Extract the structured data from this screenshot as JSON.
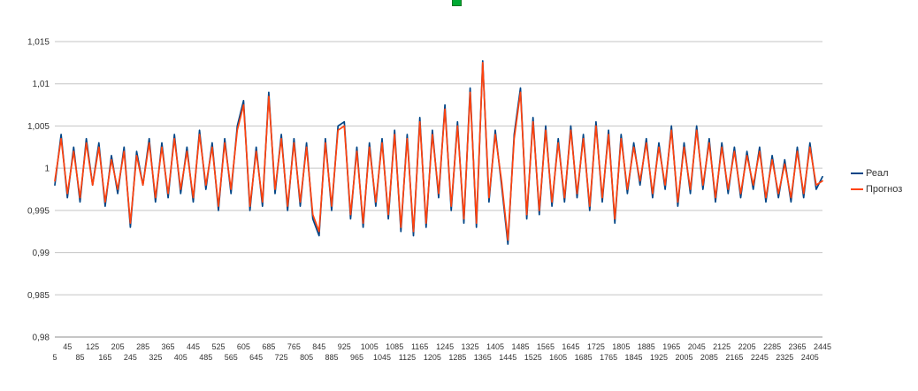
{
  "chart_data": {
    "type": "line",
    "title": "",
    "xlabel": "",
    "ylabel": "",
    "grid": true,
    "legend_position": "right",
    "ylim": [
      0.98,
      1.015
    ],
    "y_ticks": [
      {
        "value": 0.98,
        "label": "0,98"
      },
      {
        "value": 0.985,
        "label": "0,985"
      },
      {
        "value": 0.99,
        "label": "0,99"
      },
      {
        "value": 0.995,
        "label": "0,995"
      },
      {
        "value": 1,
        "label": "1"
      },
      {
        "value": 1.005,
        "label": "1,005"
      },
      {
        "value": 1.01,
        "label": "1,01"
      },
      {
        "value": 1.015,
        "label": "1,015"
      }
    ],
    "x_tick_labels_row1": [
      "45",
      "125",
      "205",
      "285",
      "365",
      "445",
      "525",
      "605",
      "685",
      "765",
      "845",
      "925",
      "1005",
      "1085",
      "1165",
      "1245",
      "1325",
      "1405",
      "1485",
      "1565",
      "1645",
      "1725",
      "1805",
      "1885",
      "1965",
      "2045",
      "2125",
      "2205",
      "2285",
      "2365",
      "2445"
    ],
    "x_tick_labels_row2": [
      "5",
      "85",
      "165",
      "245",
      "325",
      "405",
      "485",
      "565",
      "645",
      "725",
      "805",
      "885",
      "965",
      "1045",
      "1125",
      "1205",
      "1285",
      "1365",
      "1445",
      "1525",
      "1605",
      "1685",
      "1765",
      "1845",
      "1925",
      "2005",
      "2085",
      "2165",
      "2245",
      "2325",
      "2405"
    ],
    "x": [
      5,
      25,
      45,
      65,
      85,
      105,
      125,
      145,
      165,
      185,
      205,
      225,
      245,
      265,
      285,
      305,
      325,
      345,
      365,
      385,
      405,
      425,
      445,
      465,
      485,
      505,
      525,
      545,
      565,
      585,
      605,
      625,
      645,
      665,
      685,
      705,
      725,
      745,
      765,
      785,
      805,
      825,
      845,
      865,
      885,
      905,
      925,
      945,
      965,
      985,
      1005,
      1025,
      1045,
      1065,
      1085,
      1105,
      1125,
      1145,
      1165,
      1185,
      1205,
      1225,
      1245,
      1265,
      1285,
      1305,
      1325,
      1345,
      1365,
      1385,
      1405,
      1425,
      1445,
      1465,
      1485,
      1505,
      1525,
      1545,
      1565,
      1585,
      1605,
      1625,
      1645,
      1665,
      1685,
      1705,
      1725,
      1745,
      1765,
      1785,
      1805,
      1825,
      1845,
      1865,
      1885,
      1905,
      1925,
      1945,
      1965,
      1985,
      2005,
      2025,
      2045,
      2065,
      2085,
      2105,
      2125,
      2145,
      2165,
      2185,
      2205,
      2225,
      2245,
      2265,
      2285,
      2305,
      2325,
      2345,
      2365,
      2385,
      2405,
      2425,
      2445
    ],
    "series": [
      {
        "name": "Реал",
        "color": "#004586",
        "values": [
          0.998,
          1.004,
          0.9965,
          1.0025,
          0.996,
          1.0035,
          0.998,
          1.003,
          0.9955,
          1.0015,
          0.997,
          1.0025,
          0.993,
          1.002,
          0.998,
          1.0035,
          0.996,
          1.003,
          0.9965,
          1.004,
          0.997,
          1.0025,
          0.996,
          1.0045,
          0.9975,
          1.003,
          0.995,
          1.0035,
          0.997,
          1.005,
          1.008,
          0.995,
          1.0025,
          0.9955,
          1.009,
          0.997,
          1.004,
          0.995,
          1.0035,
          0.9955,
          1.003,
          0.994,
          0.992,
          1.0035,
          0.995,
          1.005,
          1.0055,
          0.994,
          1.0025,
          0.993,
          1.003,
          0.9955,
          1.0035,
          0.994,
          1.0045,
          0.9925,
          1.004,
          0.992,
          1.006,
          0.993,
          1.0045,
          0.9965,
          1.0075,
          0.995,
          1.0055,
          0.9935,
          1.0095,
          0.993,
          1.0127,
          0.996,
          1.0045,
          0.998,
          0.991,
          1.004,
          1.0095,
          0.994,
          1.006,
          0.9945,
          1.005,
          0.9955,
          1.0035,
          0.996,
          1.005,
          0.9965,
          1.004,
          0.995,
          1.0055,
          0.996,
          1.0045,
          0.9935,
          1.004,
          0.997,
          1.003,
          0.998,
          1.0035,
          0.9965,
          1.003,
          0.9975,
          1.005,
          0.9955,
          1.003,
          0.997,
          1.005,
          0.9975,
          1.0035,
          0.996,
          1.003,
          0.997,
          1.0025,
          0.9965,
          1.002,
          0.9975,
          1.0025,
          0.996,
          1.0015,
          0.9965,
          1.001,
          0.996,
          1.0025,
          0.9965,
          1.003,
          0.9975,
          0.999
        ]
      },
      {
        "name": "Прогноз",
        "color": "#ff420e",
        "values": [
          0.9985,
          1.0035,
          0.997,
          1.002,
          0.9965,
          1.003,
          0.998,
          1.0025,
          0.996,
          1.001,
          0.9975,
          1.002,
          0.9935,
          1.0015,
          0.998,
          1.003,
          0.9965,
          1.0025,
          0.997,
          1.0035,
          0.9975,
          1.002,
          0.9965,
          1.004,
          0.998,
          1.0025,
          0.9955,
          1.003,
          0.9975,
          1.0045,
          1.0075,
          0.9955,
          1.002,
          0.996,
          1.0085,
          0.9975,
          1.0035,
          0.9955,
          1.003,
          0.996,
          1.0025,
          0.9945,
          0.9925,
          1.003,
          0.9955,
          1.0045,
          1.005,
          0.9945,
          1.002,
          0.9935,
          1.0025,
          0.996,
          1.003,
          0.9945,
          1.004,
          0.993,
          1.0035,
          0.9925,
          1.0055,
          0.9935,
          1.004,
          0.997,
          1.007,
          0.9955,
          1.005,
          0.994,
          1.009,
          0.9935,
          1.0125,
          0.9965,
          1.004,
          0.9985,
          0.9915,
          1.0035,
          1.009,
          0.9945,
          1.0055,
          0.995,
          1.0045,
          0.996,
          1.003,
          0.9965,
          1.0045,
          0.997,
          1.0035,
          0.9955,
          1.005,
          0.9965,
          1.004,
          0.994,
          1.0035,
          0.9975,
          1.0025,
          0.9985,
          1.003,
          0.997,
          1.0025,
          0.998,
          1.0045,
          0.996,
          1.0025,
          0.9975,
          1.0045,
          0.998,
          1.003,
          0.9965,
          1.0025,
          0.9975,
          1.002,
          0.997,
          1.0015,
          0.998,
          1.002,
          0.9965,
          1.001,
          0.997,
          1.0005,
          0.9965,
          1.002,
          0.997,
          1.0025,
          0.998,
          0.9985
        ]
      }
    ]
  },
  "legend": {
    "items": [
      {
        "label": "Реал",
        "color": "#004586"
      },
      {
        "label": "Прогноз",
        "color": "#ff420e"
      }
    ]
  },
  "colors": {
    "gridline": "#c5c5c5",
    "axis": "#8e8e8e",
    "marker_green": "#00a933"
  }
}
